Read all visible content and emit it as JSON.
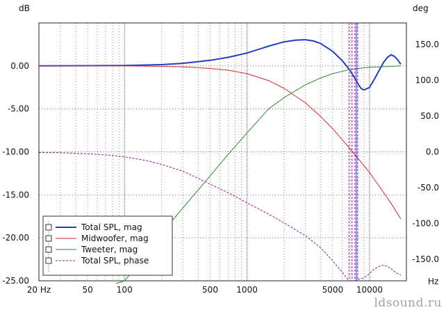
{
  "chart_data": {
    "type": "line",
    "title": "",
    "xlabel": "Hz",
    "ylabel": "dB",
    "y2label": "deg",
    "xscale": "log",
    "xlim": [
      20,
      20000
    ],
    "ylim": [
      -25,
      5
    ],
    "y2lim": [
      -180,
      180
    ],
    "grid": true,
    "legend": "bottom-left",
    "x_tick_values": [
      20,
      50,
      100,
      500,
      1000,
      5000,
      10000
    ],
    "x_tick_labels": [
      "20 Hz",
      "50",
      "100",
      "500",
      "1000",
      "5000",
      "10000"
    ],
    "x_unit_label": "Hz",
    "y_tick_values": [
      0,
      -5,
      -10,
      -15,
      -20,
      -25
    ],
    "y_tick_labels": [
      "0.00",
      "-5.00",
      "-10.00",
      "-15.00",
      "-20.00",
      "-25.00"
    ],
    "y2_tick_values": [
      150,
      100,
      50,
      0,
      -50,
      -100,
      -150
    ],
    "y2_tick_labels": [
      "150.0",
      "100.0",
      "50.0",
      "0.0",
      "-50.0",
      "-100.0",
      "-150.0"
    ],
    "series": [
      {
        "name": "Total SPL, mag",
        "axis": "left",
        "color": "#1f3fbf",
        "style": "solid",
        "width": 2,
        "x": [
          20,
          100,
          200,
          300,
          500,
          700,
          1000,
          1500,
          2000,
          2500,
          3000,
          3500,
          4000,
          5000,
          6000,
          7000,
          8000,
          8500,
          9000,
          10000,
          11000,
          12000,
          13000,
          14000,
          15000,
          16000,
          17000,
          18000
        ],
        "y": [
          0.0,
          0.05,
          0.15,
          0.3,
          0.65,
          1.0,
          1.5,
          2.3,
          2.8,
          3.0,
          3.05,
          2.9,
          2.6,
          1.7,
          0.6,
          -0.6,
          -2.0,
          -2.6,
          -2.8,
          -2.5,
          -1.5,
          -0.5,
          0.4,
          1.0,
          1.3,
          1.1,
          0.7,
          0.2
        ]
      },
      {
        "name": "Midwoofer, mag",
        "axis": "left",
        "color": "#d42b2b",
        "style": "solid",
        "width": 1,
        "x": [
          20,
          100,
          200,
          300,
          500,
          700,
          1000,
          1500,
          2000,
          3000,
          4000,
          5000,
          6000,
          7000,
          8000,
          10000,
          12000,
          15000,
          18000
        ],
        "y": [
          0.0,
          0.0,
          -0.05,
          -0.1,
          -0.3,
          -0.5,
          -0.9,
          -1.7,
          -2.6,
          -4.3,
          -5.9,
          -7.3,
          -8.6,
          -9.7,
          -10.7,
          -12.4,
          -14.0,
          -16.0,
          -17.8
        ]
      },
      {
        "name": "Tweeter, mag",
        "axis": "left",
        "color": "#2a8a2a",
        "style": "solid",
        "width": 1,
        "x": [
          85,
          100,
          150,
          200,
          300,
          500,
          700,
          1000,
          1500,
          2000,
          3000,
          4000,
          5000,
          7000,
          10000,
          15000,
          18000
        ],
        "y": [
          -26.0,
          -25.0,
          -22.0,
          -19.5,
          -16.5,
          -12.8,
          -10.3,
          -7.8,
          -5.0,
          -3.7,
          -2.2,
          -1.4,
          -0.9,
          -0.4,
          -0.15,
          -0.05,
          0.0
        ]
      },
      {
        "name": "Total SPL, phase",
        "axis": "right",
        "color": "#8b1a8b",
        "style": "dashed",
        "width": 1,
        "x": [
          20,
          30,
          40,
          60,
          80,
          100,
          150,
          200,
          300,
          400,
          500,
          700,
          1000,
          1500,
          2000,
          3000,
          4000,
          5000,
          6000,
          6500,
          6800
        ],
        "y": [
          -1,
          -1.2,
          -2,
          -3.5,
          -5,
          -7,
          -12,
          -17.5,
          -27,
          -37,
          -45,
          -57,
          -71,
          -87,
          -99,
          -117,
          -134,
          -152,
          -168,
          -176,
          -180
        ],
        "x2": [
          7600,
          8000,
          9000,
          10000,
          11000,
          12000,
          13000,
          14000,
          15000,
          16000,
          17000,
          18000
        ],
        "y2": [
          -180,
          -178,
          -176,
          -170,
          -163,
          -160,
          -158,
          -160,
          -163,
          -167,
          -170,
          -172
        ]
      }
    ],
    "markers": [
      {
        "x": 6800,
        "color": "#8b1a8b",
        "style": "dashed"
      },
      {
        "x": 7200,
        "color": "#8b1a8b",
        "style": "dashed"
      },
      {
        "x": 7600,
        "color": "#8b1a8b",
        "style": "dashed"
      },
      {
        "x": 8000,
        "color": "#8b1a8b",
        "style": "dashed"
      },
      {
        "x": 7800,
        "color": "#1f3fbf",
        "style": "solid"
      }
    ]
  },
  "axes": {
    "left_unit": "dB",
    "right_unit": "deg"
  },
  "legend": {
    "items": [
      {
        "label": "Total SPL, mag"
      },
      {
        "label": "Midwoofer, mag"
      },
      {
        "label": "Tweeter, mag"
      },
      {
        "label": "Total SPL, phase"
      }
    ]
  },
  "watermark": "ldsound.ru"
}
